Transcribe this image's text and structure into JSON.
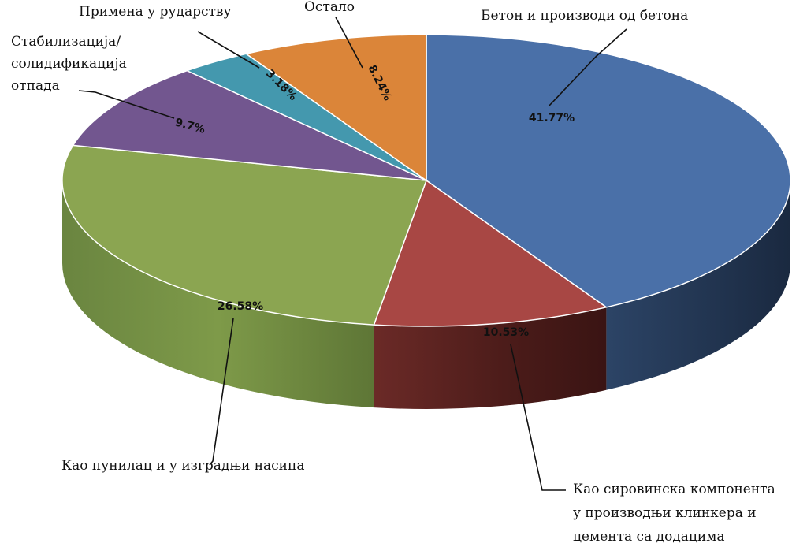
{
  "chart_data": {
    "type": "pie",
    "style": "3d",
    "title": "",
    "slices": [
      {
        "label": "Бетон и производи од бетона",
        "value": 41.77,
        "value_label": "41.77%",
        "color": "#4A70A8",
        "side_color": "#23344F"
      },
      {
        "label": "Као сировинска компонента у производњи клинкера и цемента са додацима",
        "label_lines": [
          "Као сировинска компонента",
          "у производњи клинкера и",
          "цемента са додацима"
        ],
        "value": 10.53,
        "value_label": "10.53%",
        "color": "#A84744",
        "side_color": "#5A2220"
      },
      {
        "label": "Као пунилац и у изградњи насипа",
        "value": 26.58,
        "value_label": "26.58%",
        "color": "#8BA551",
        "side_color": "#6F8740"
      },
      {
        "label": "Стабилизација/ солидификација отпада",
        "label_lines": [
          "Стабилизација/",
          "солидификација",
          "отпада"
        ],
        "value": 9.7,
        "value_label": "9.7%",
        "color": "#72568F",
        "side_color": "#4B3863"
      },
      {
        "label": "Примена у рударству",
        "value": 3.18,
        "value_label": "3.18%",
        "color": "#4498AE",
        "side_color": "#2B6170"
      },
      {
        "label": "Остало",
        "value": 8.24,
        "value_label": "8.24%",
        "color": "#DB8539",
        "side_color": "#8F5524"
      }
    ]
  }
}
